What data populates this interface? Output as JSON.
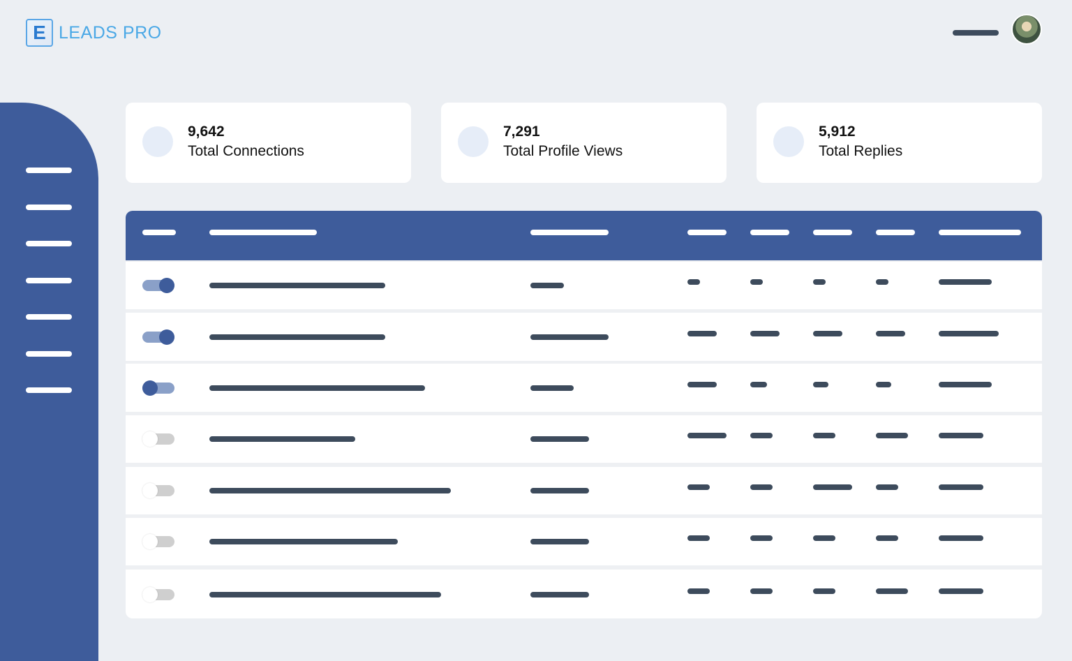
{
  "brand": {
    "logo_letter": "E",
    "name": "LEADS PRO"
  },
  "stats": [
    {
      "value": "9,642",
      "label": "Total Connections"
    },
    {
      "value": "7,291",
      "label": "Total Profile Views"
    },
    {
      "value": "5,912",
      "label": "Total Replies"
    }
  ],
  "rows": [
    {
      "toggle": "on"
    },
    {
      "toggle": "on"
    },
    {
      "toggle": "on-left"
    },
    {
      "toggle": "off"
    },
    {
      "toggle": "off"
    },
    {
      "toggle": "off"
    },
    {
      "toggle": "off"
    }
  ],
  "colors": {
    "primary": "#3E5C9B",
    "background": "#ECEFF3",
    "skeleton": "#3d4b5c"
  }
}
